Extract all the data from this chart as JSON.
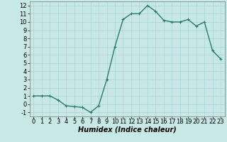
{
  "x": [
    0,
    1,
    2,
    3,
    4,
    5,
    6,
    7,
    8,
    9,
    10,
    11,
    12,
    13,
    14,
    15,
    16,
    17,
    18,
    19,
    20,
    21,
    22,
    23
  ],
  "y": [
    1,
    1,
    1,
    0.5,
    -0.2,
    -0.3,
    -0.4,
    -1,
    -0.2,
    3,
    7,
    10.3,
    11,
    11,
    12,
    11.3,
    10.2,
    10,
    10,
    10.3,
    9.5,
    10,
    6.5,
    5.5
  ],
  "line_color": "#2a7a6a",
  "marker": "+",
  "bg_color": "#c8e8e8",
  "grid_color": "#aad4d4",
  "xlabel": "Humidex (Indice chaleur)",
  "xlim": [
    -0.5,
    23.5
  ],
  "ylim": [
    -1.5,
    12.5
  ],
  "yticks": [
    -1,
    0,
    1,
    2,
    3,
    4,
    5,
    6,
    7,
    8,
    9,
    10,
    11,
    12
  ],
  "xticks": [
    0,
    1,
    2,
    3,
    4,
    5,
    6,
    7,
    8,
    9,
    10,
    11,
    12,
    13,
    14,
    15,
    16,
    17,
    18,
    19,
    20,
    21,
    22,
    23
  ],
  "xlabel_fontsize": 7,
  "tick_fontsize": 6,
  "marker_size": 3,
  "linewidth": 1.0
}
